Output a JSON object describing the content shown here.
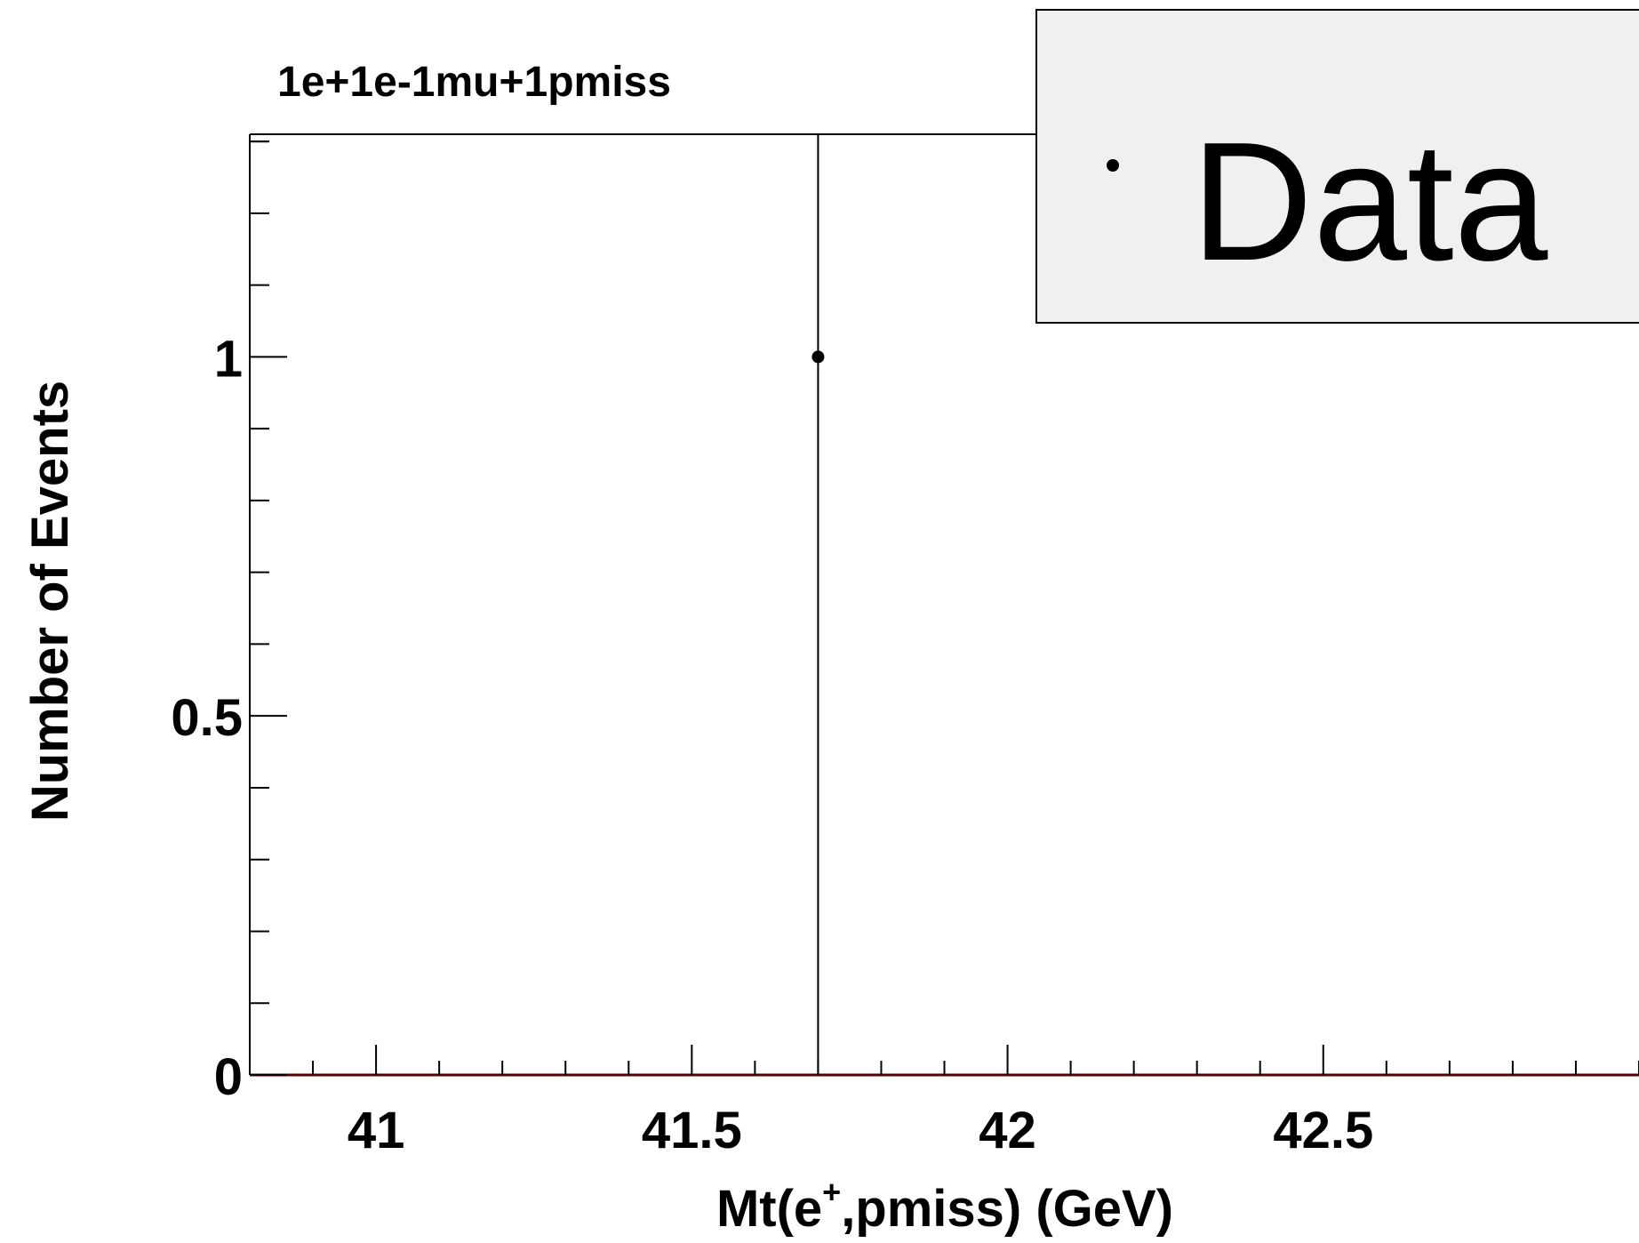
{
  "chart_data": {
    "type": "scatter",
    "title": "1e+1e-1mu+1pmiss",
    "xlabel_main": "Mt(e",
    "xlabel_sup": "+",
    "xlabel_rest": ",pmiss) (GeV)",
    "ylabel": "Number of Events",
    "xlim": [
      40.8,
      43.0
    ],
    "ylim": [
      0,
      1.31
    ],
    "x_ticks": [
      41,
      41.5,
      42,
      42.5
    ],
    "x_tick_labels": [
      "41",
      "41.5",
      "42",
      "42.5"
    ],
    "y_ticks": [
      0,
      0.5,
      1
    ],
    "y_tick_labels": [
      "0",
      "0.5",
      "1"
    ],
    "series": [
      {
        "name": "Data",
        "points": [
          {
            "x": 41.7,
            "y": 1,
            "err_low": 1,
            "err_high": 1.31
          }
        ]
      }
    ],
    "legend": {
      "position": "top-right",
      "entries": [
        "Data"
      ],
      "background": "#f0f0f0"
    },
    "grid": false,
    "colors": {
      "data": "#000000",
      "baseline": "#5a0000"
    }
  }
}
